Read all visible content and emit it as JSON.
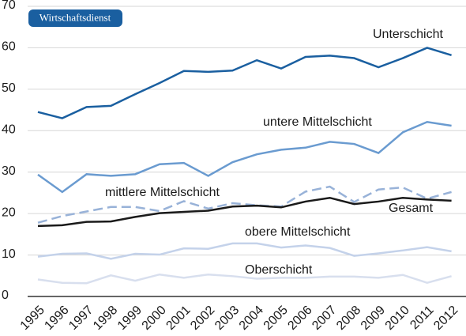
{
  "chart_data": {
    "type": "line",
    "badge": "Wirtschaftsdienst",
    "categories": [
      "1995",
      "1996",
      "1997",
      "1998",
      "1999",
      "2000",
      "2001",
      "2002",
      "2003",
      "2004",
      "2005",
      "2006",
      "2007",
      "2008",
      "2009",
      "2010",
      "2011",
      "2012"
    ],
    "ylim": [
      0,
      70
    ],
    "yticks": [
      0,
      10,
      20,
      30,
      40,
      50,
      60,
      70
    ],
    "grid": true,
    "series": [
      {
        "name": "Unterschicht",
        "color": "#1a5fa0",
        "style": "solid",
        "values": [
          44.5,
          43,
          45.7,
          46,
          48.8,
          51.5,
          54.4,
          54.2,
          54.5,
          57,
          55,
          57.8,
          58.1,
          57.5,
          55.3,
          57.5,
          60,
          58.2
        ]
      },
      {
        "name": "untere Mittelschicht",
        "color": "#6a9bd0",
        "style": "solid",
        "values": [
          29.4,
          25.2,
          29.5,
          29.1,
          29.5,
          31.9,
          32.2,
          29.1,
          32.4,
          34.3,
          35.4,
          35.9,
          37.3,
          36.8,
          34.6,
          39.6,
          42.1,
          41.2
        ]
      },
      {
        "name": "mittlere Mittelschicht",
        "color": "#98b2d8",
        "style": "dashed",
        "values": [
          17.8,
          19.4,
          20.5,
          21.6,
          21.6,
          20.6,
          23,
          21.2,
          22.5,
          22,
          21.7,
          25.3,
          26.5,
          22.8,
          25.8,
          26.3,
          23.6,
          25.2
        ]
      },
      {
        "name": "Gesamt",
        "color": "#1a1a1a",
        "style": "solid",
        "values": [
          17,
          17.2,
          18,
          18.1,
          19.2,
          20.1,
          20.4,
          20.7,
          21.7,
          21.9,
          21.5,
          22.9,
          23.8,
          22.3,
          22.9,
          23.8,
          23.4,
          23.1
        ]
      },
      {
        "name": "obere Mittelschicht",
        "color": "#c4d2ea",
        "style": "solid",
        "values": [
          9.6,
          10.3,
          10.4,
          9.1,
          10.3,
          10.1,
          11.6,
          11.5,
          12.8,
          12.8,
          11.8,
          12.3,
          11.7,
          9.8,
          10.4,
          11.1,
          11.9,
          10.9
        ]
      },
      {
        "name": "Oberschicht",
        "color": "#d8dfee",
        "style": "solid",
        "values": [
          4.1,
          3.3,
          3.2,
          5.1,
          3.8,
          5.3,
          4.5,
          5.3,
          4.9,
          4.3,
          4.5,
          4.5,
          4.8,
          4.8,
          4.5,
          5.2,
          3.3,
          4.9
        ]
      }
    ]
  }
}
